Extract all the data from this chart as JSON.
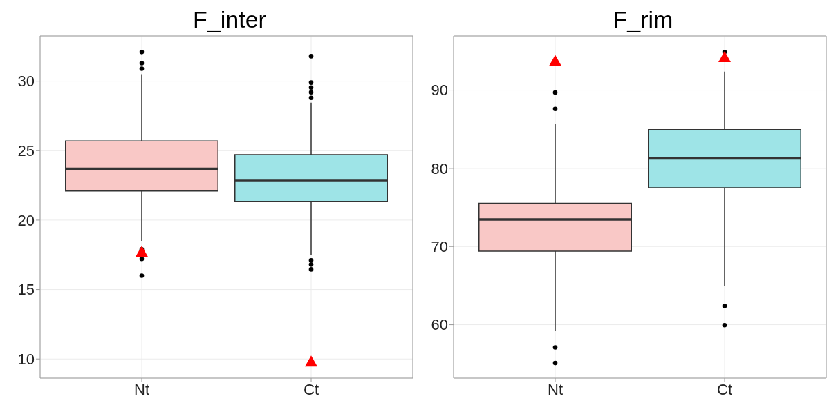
{
  "chart_data": [
    {
      "type": "box",
      "title": "F_inter",
      "categories": [
        "Nt",
        "Ct"
      ],
      "colors": [
        "#f9c8c6",
        "#9ee4e7"
      ],
      "ylim": [
        8.62,
        33.26
      ],
      "yticks": [
        10,
        15,
        20,
        25,
        30
      ],
      "grid": true,
      "boxes": [
        {
          "low": 18.5,
          "q1": 22.1,
          "median": 23.7,
          "q3": 25.7,
          "high": 30.5,
          "outliers": [
            32.1,
            31.3,
            30.9,
            17.9,
            17.2,
            16.0
          ]
        },
        {
          "low": 17.5,
          "q1": 21.35,
          "median": 22.83,
          "q3": 24.72,
          "high": 28.45,
          "outliers": [
            31.8,
            29.9,
            29.55,
            29.2,
            28.8,
            17.1,
            16.8,
            16.45
          ]
        }
      ],
      "series": [
        {
          "type": "scatter",
          "x": [
            "Nt",
            "Ct"
          ],
          "values": [
            17.7,
            9.8
          ],
          "color": "#ff0000",
          "marker": "triangle"
        }
      ]
    },
    {
      "type": "box",
      "title": "F_rim",
      "categories": [
        "Nt",
        "Ct"
      ],
      "colors": [
        "#f9c8c6",
        "#9ee4e7"
      ],
      "ylim": [
        53.17,
        96.93
      ],
      "yticks": [
        60,
        70,
        80,
        90
      ],
      "grid": true,
      "boxes": [
        {
          "low": 59.2,
          "q1": 69.4,
          "median": 73.46,
          "q3": 75.53,
          "high": 85.7,
          "outliers": [
            89.7,
            87.6,
            57.1,
            55.1
          ]
        },
        {
          "low": 65.0,
          "q1": 77.52,
          "median": 81.27,
          "q3": 84.96,
          "high": 92.37,
          "outliers": [
            94.87,
            62.4,
            59.94
          ]
        }
      ],
      "series": [
        {
          "type": "scatter",
          "x": [
            "Nt",
            "Ct"
          ],
          "values": [
            93.7,
            94.2
          ],
          "color": "#ff0000",
          "marker": "triangle"
        }
      ]
    }
  ]
}
